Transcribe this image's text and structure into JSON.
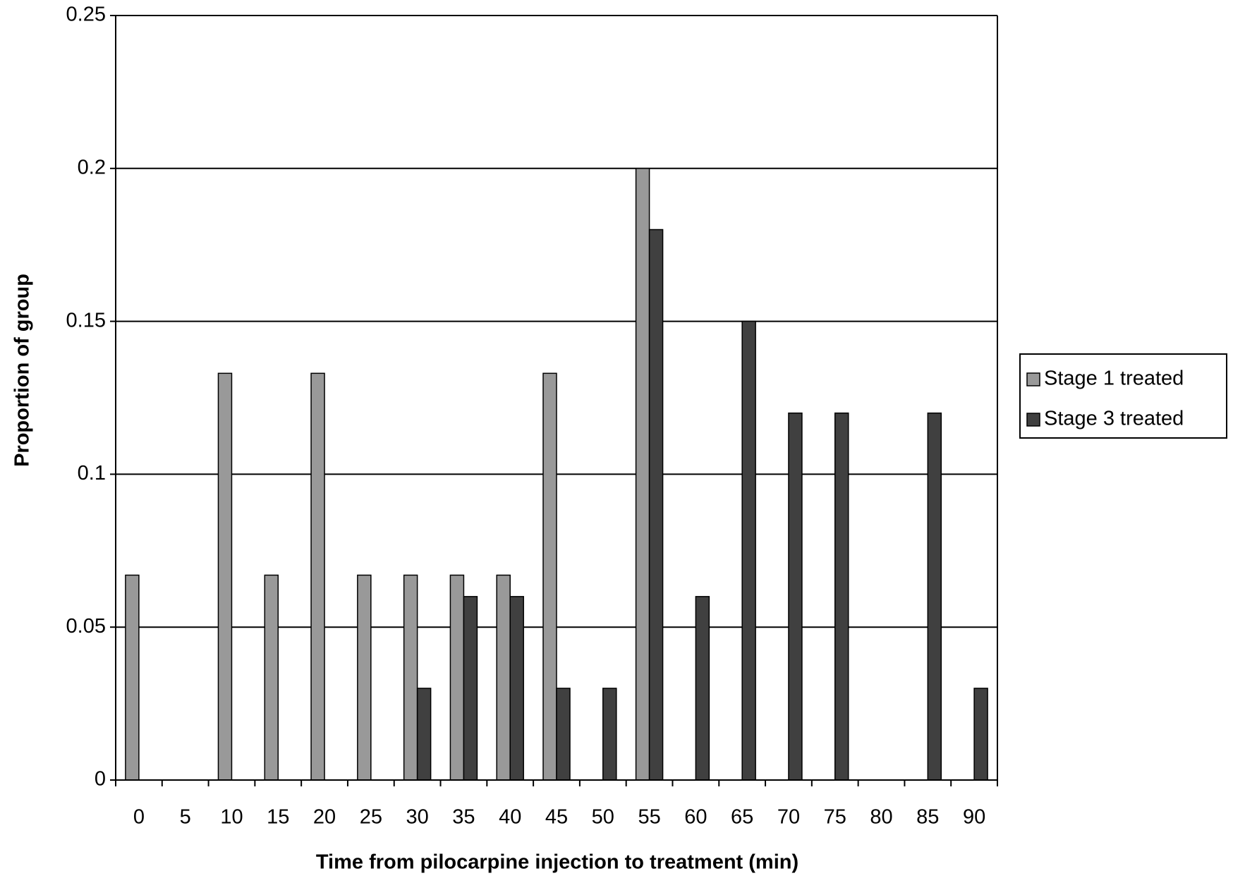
{
  "chart_data": {
    "type": "bar",
    "x_label": "Time from pilocarpine injection to treatment (min)",
    "y_label": "Proportion of group",
    "categories": [
      "0",
      "5",
      "10",
      "15",
      "20",
      "25",
      "30",
      "35",
      "40",
      "45",
      "50",
      "55",
      "60",
      "65",
      "70",
      "75",
      "80",
      "85",
      "90"
    ],
    "series": [
      {
        "name": "Stage 1 treated",
        "color": "#999999",
        "values": [
          0.067,
          0,
          0.133,
          0.067,
          0.133,
          0.067,
          0.067,
          0.067,
          0.067,
          0.133,
          0,
          0.2,
          0,
          0,
          0,
          0,
          0,
          0,
          0
        ]
      },
      {
        "name": "Stage 3 treated",
        "color": "#404040",
        "values": [
          0,
          0,
          0,
          0,
          0,
          0,
          0.03,
          0.06,
          0.06,
          0.03,
          0.03,
          0.18,
          0.06,
          0.15,
          0.12,
          0.12,
          0,
          0.12,
          0.03
        ]
      }
    ],
    "ylim": [
      0,
      0.25
    ],
    "yticks": [
      0,
      0.05,
      0.1,
      0.15,
      0.2,
      0.25
    ],
    "grid": true,
    "legend": "right"
  }
}
